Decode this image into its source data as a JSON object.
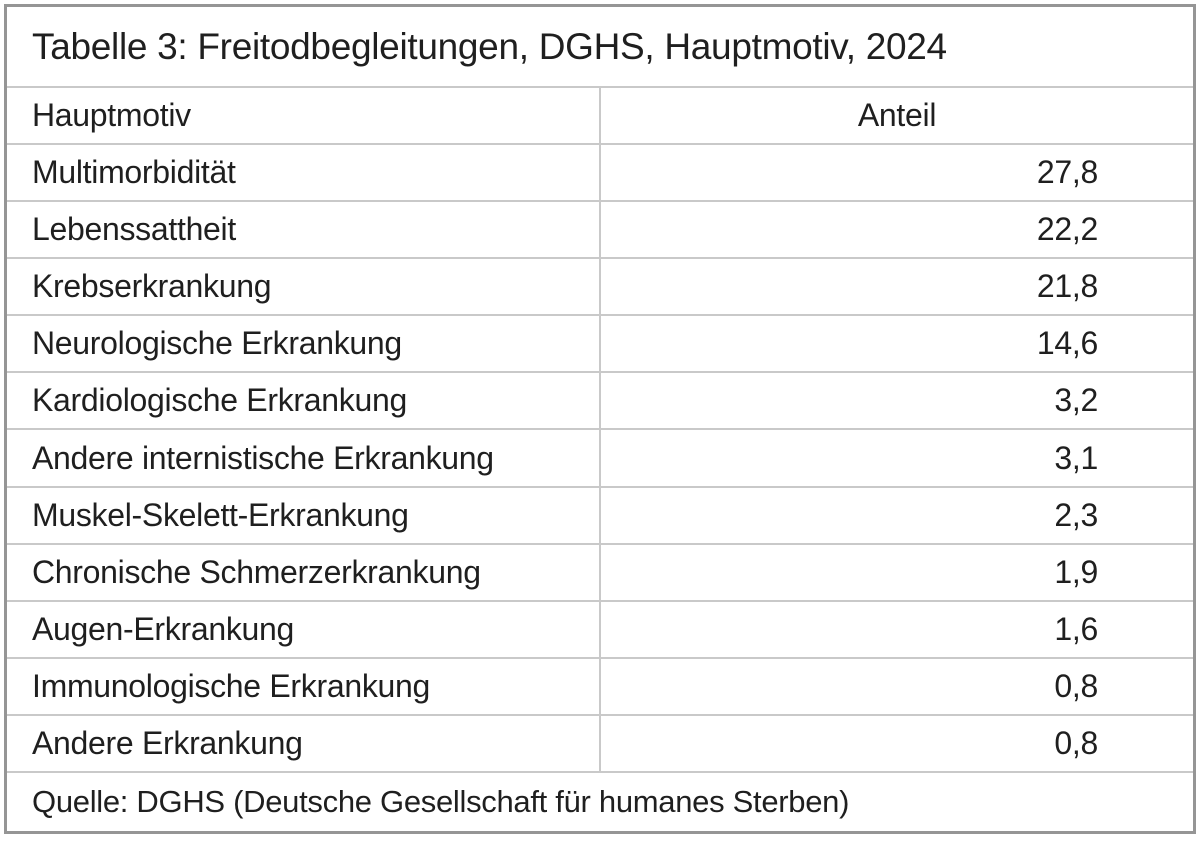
{
  "chart_data": {
    "type": "table",
    "title": "Tabelle 3: Freitodbegleitungen, DGHS, Hauptmotiv, 2024",
    "columns": [
      "Hauptmotiv",
      "Anteil"
    ],
    "rows": [
      {
        "motiv": "Multimorbidität",
        "anteil": "27,8"
      },
      {
        "motiv": "Lebenssattheit",
        "anteil": "22,2"
      },
      {
        "motiv": "Krebserkrankung",
        "anteil": "21,8"
      },
      {
        "motiv": "Neurologische Erkrankung",
        "anteil": "14,6"
      },
      {
        "motiv": "Kardiologische Erkrankung",
        "anteil": "3,2"
      },
      {
        "motiv": "Andere internistische Erkrankung",
        "anteil": "3,1"
      },
      {
        "motiv": "Muskel-Skelett-Erkrankung",
        "anteil": "2,3"
      },
      {
        "motiv": "Chronische Schmerzerkrankung",
        "anteil": "1,9"
      },
      {
        "motiv": "Augen-Erkrankung",
        "anteil": "1,6"
      },
      {
        "motiv": "Immunologische Erkrankung",
        "anteil": "0,8"
      },
      {
        "motiv": "Andere Erkrankung",
        "anteil": "0,8"
      }
    ],
    "source": "Quelle: DGHS (Deutsche Gesellschaft für humanes Sterben)",
    "layout": {
      "value_alignment": "right",
      "decimal_separator": ","
    }
  },
  "colors": {
    "text": "#1f1f1f",
    "outer_border": "#959595",
    "inner_border": "#c9c9c9",
    "background": "#ffffff"
  }
}
